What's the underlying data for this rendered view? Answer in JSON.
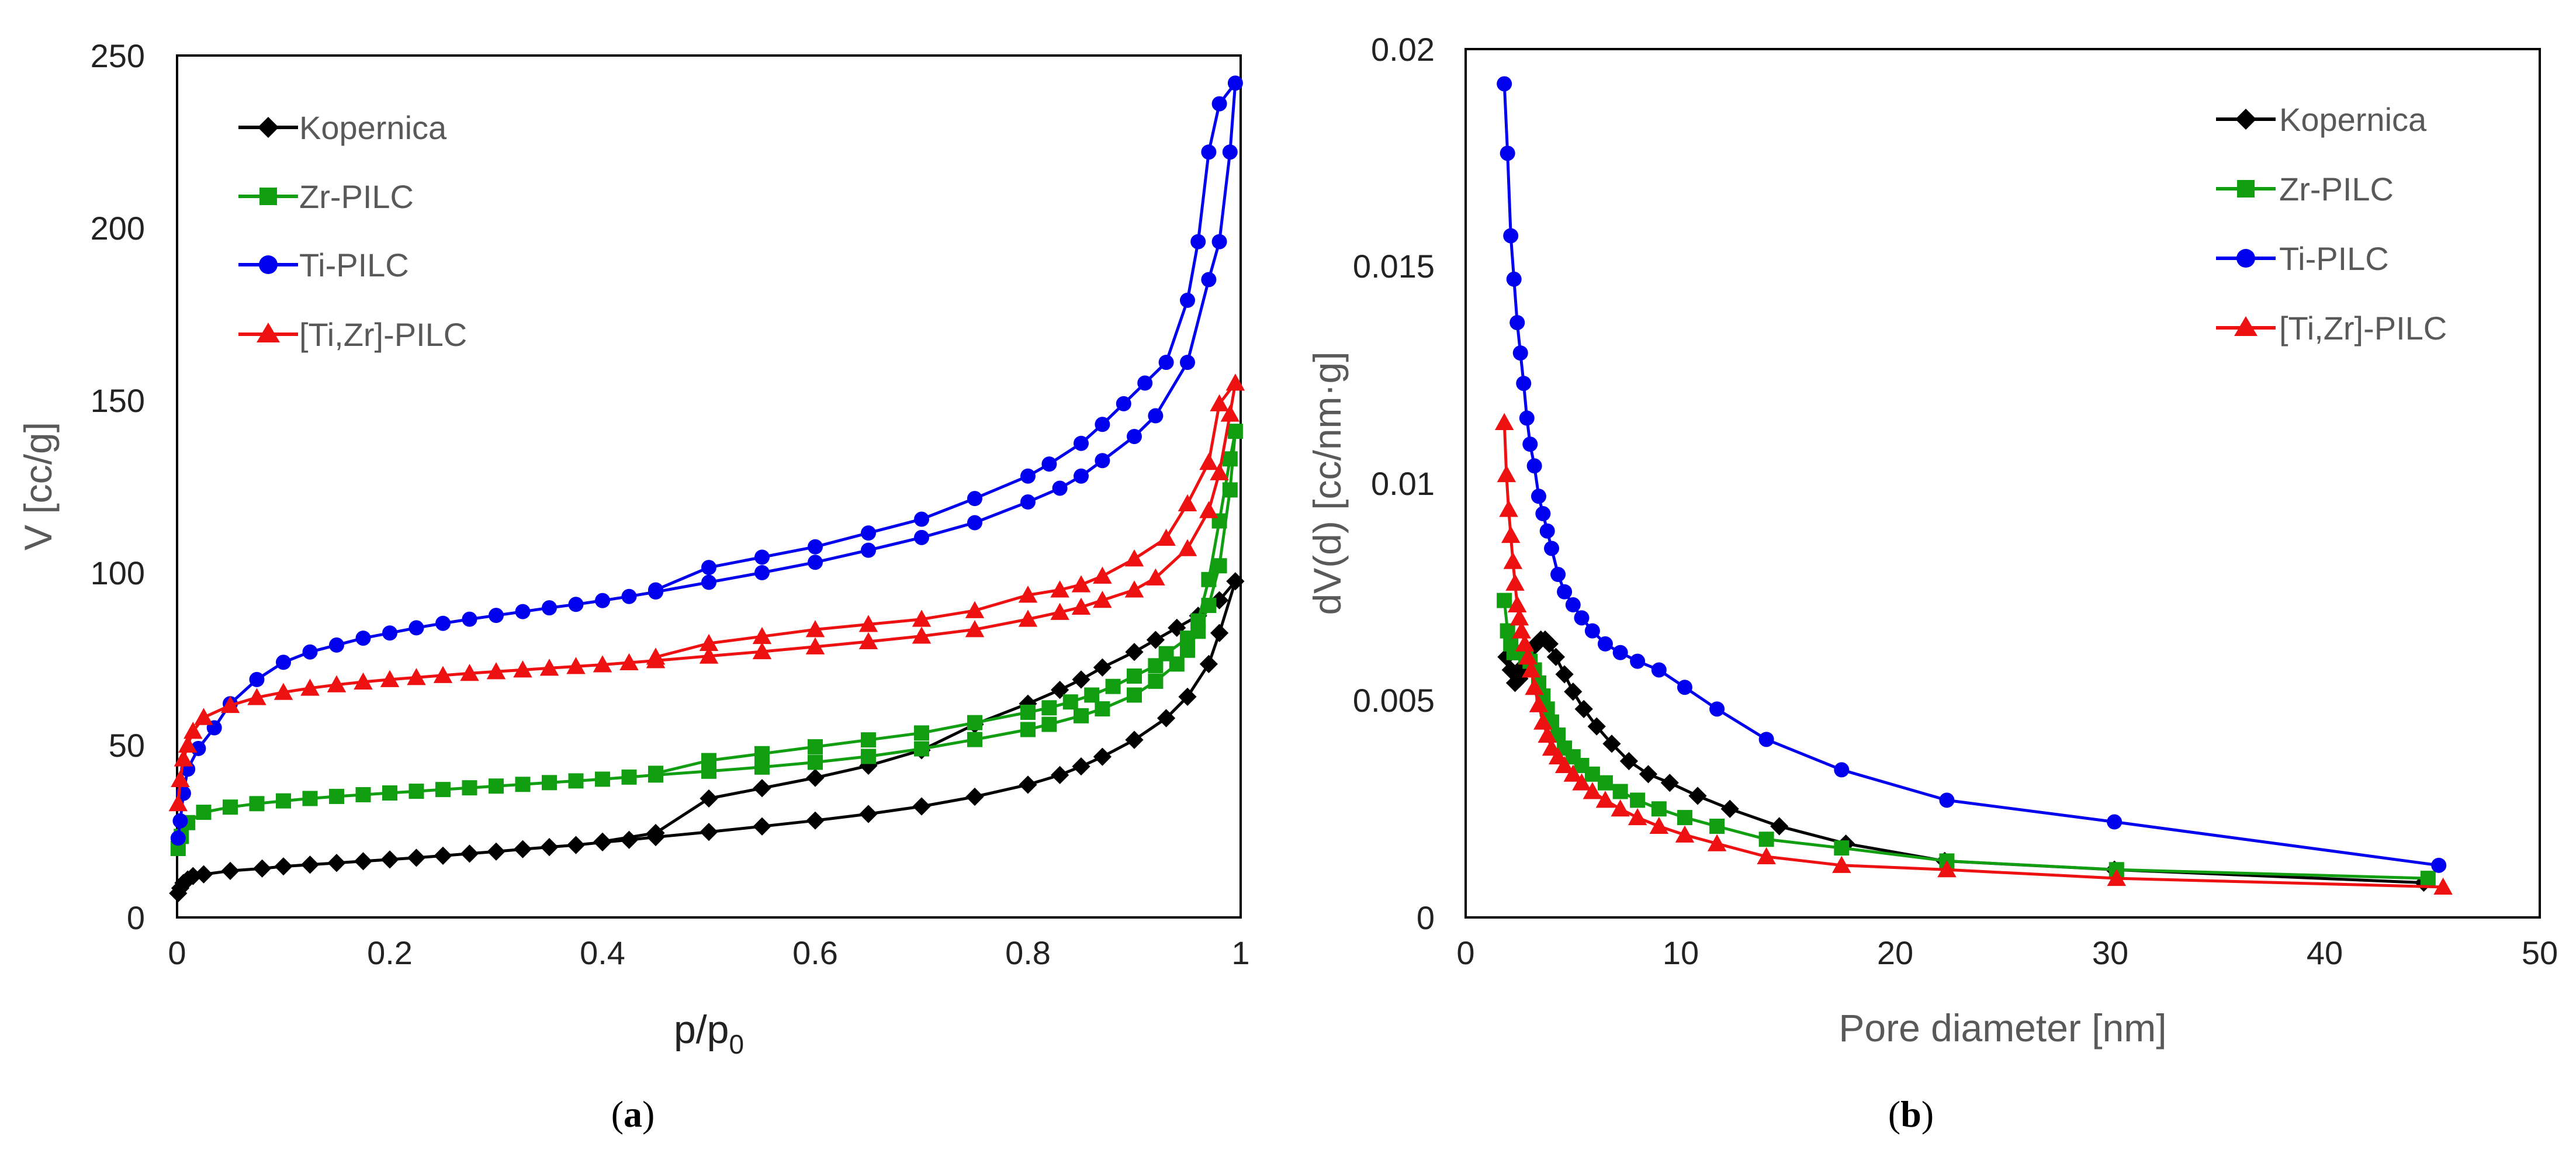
{
  "chart_data": [
    {
      "type": "line",
      "panel": "(a)",
      "panel_prefix": "(",
      "panel_letter": "a",
      "panel_suffix": ")",
      "xlabel": "p/p0",
      "xlabel_main": "p/p",
      "xlabel_sub": "0",
      "ylabel": "V [cc/g]",
      "xlim": [
        0,
        1
      ],
      "ylim": [
        0,
        250
      ],
      "xticks": [
        0,
        0.2,
        0.4,
        0.6,
        0.8,
        1
      ],
      "xtick_labels": [
        "0",
        "0.2",
        "0.4",
        "0.6",
        "0.8",
        "1"
      ],
      "yticks": [
        0,
        50,
        100,
        150,
        200,
        250
      ],
      "ytick_labels": [
        "0",
        "50",
        "100",
        "150",
        "200",
        "250"
      ],
      "grid": false,
      "legend_position": "top-left",
      "series": [
        {
          "name": "Kopernica",
          "color": "#000000",
          "marker": "diamond",
          "x": [
            0.001,
            0.003,
            0.006,
            0.01,
            0.015,
            0.025,
            0.05,
            0.08,
            0.1,
            0.125,
            0.15,
            0.175,
            0.2,
            0.225,
            0.25,
            0.275,
            0.3,
            0.325,
            0.35,
            0.375,
            0.4,
            0.425,
            0.45,
            0.5,
            0.55,
            0.6,
            0.65,
            0.7,
            0.75,
            0.8,
            0.83,
            0.85,
            0.87,
            0.9,
            0.93,
            0.95,
            0.97,
            0.98,
            0.995,
            0.98,
            0.96,
            0.94,
            0.92,
            0.9,
            0.87,
            0.85,
            0.83,
            0.8,
            0.75,
            0.7,
            0.65,
            0.6,
            0.55,
            0.5,
            0.45,
            0.4
          ],
          "y": [
            7,
            8.5,
            10,
            11,
            12,
            12.5,
            13.5,
            14.2,
            14.8,
            15.3,
            15.8,
            16.3,
            16.8,
            17.3,
            17.9,
            18.5,
            19.1,
            19.8,
            20.4,
            21,
            21.8,
            22.5,
            23.3,
            24.8,
            26.4,
            28.1,
            30,
            32.2,
            35,
            38.5,
            41.3,
            43.8,
            46.6,
            51.5,
            57.8,
            64,
            73.5,
            82.5,
            97.5,
            92,
            87.5,
            84,
            80.5,
            77,
            72.5,
            69,
            66,
            62,
            56,
            48.5,
            44,
            40.5,
            37.5,
            34.5,
            24.5,
            22
          ]
        },
        {
          "name": "Zr-PILC",
          "color": "#119e11",
          "marker": "square",
          "x": [
            0.001,
            0.004,
            0.01,
            0.025,
            0.05,
            0.075,
            0.1,
            0.125,
            0.15,
            0.175,
            0.2,
            0.225,
            0.25,
            0.275,
            0.3,
            0.325,
            0.35,
            0.375,
            0.4,
            0.425,
            0.45,
            0.5,
            0.55,
            0.6,
            0.65,
            0.7,
            0.75,
            0.8,
            0.82,
            0.85,
            0.87,
            0.9,
            0.92,
            0.94,
            0.95,
            0.96,
            0.97,
            0.98,
            0.99,
            0.995,
            0.99,
            0.98,
            0.97,
            0.96,
            0.95,
            0.93,
            0.92,
            0.9,
            0.88,
            0.86,
            0.84,
            0.82,
            0.8,
            0.75,
            0.7,
            0.65,
            0.6,
            0.55,
            0.5,
            0.45
          ],
          "y": [
            20,
            23.5,
            27.5,
            30.5,
            32,
            33,
            33.8,
            34.5,
            35.1,
            35.6,
            36.1,
            36.6,
            37.1,
            37.6,
            38.1,
            38.6,
            39.1,
            39.6,
            40.1,
            40.7,
            41.3,
            42.4,
            43.6,
            45,
            46.7,
            48.9,
            51.6,
            54.5,
            56,
            58.5,
            60.5,
            64.5,
            68.5,
            73.5,
            77.5,
            83,
            90.5,
            102,
            124,
            141,
            133,
            115,
            98,
            86,
            81,
            76.5,
            73,
            70,
            67,
            64.5,
            62.5,
            60.8,
            59.5,
            56.5,
            53.5,
            51.5,
            49.5,
            47.5,
            45.5,
            41.8
          ]
        },
        {
          "name": "Ti-PILC",
          "color": "#0000ee",
          "marker": "circle",
          "x": [
            0.001,
            0.003,
            0.006,
            0.01,
            0.02,
            0.035,
            0.05,
            0.075,
            0.1,
            0.125,
            0.15,
            0.175,
            0.2,
            0.225,
            0.25,
            0.275,
            0.3,
            0.325,
            0.35,
            0.375,
            0.4,
            0.425,
            0.45,
            0.5,
            0.55,
            0.6,
            0.65,
            0.7,
            0.75,
            0.8,
            0.83,
            0.85,
            0.87,
            0.9,
            0.92,
            0.95,
            0.97,
            0.98,
            0.99,
            0.995,
            0.98,
            0.97,
            0.96,
            0.95,
            0.93,
            0.91,
            0.89,
            0.87,
            0.85,
            0.82,
            0.8,
            0.75,
            0.7,
            0.65,
            0.6,
            0.55,
            0.5,
            0.45
          ],
          "y": [
            23,
            28,
            36,
            43,
            49,
            55,
            62,
            69,
            74,
            77,
            79,
            81,
            82.5,
            84,
            85.3,
            86.5,
            87.6,
            88.7,
            89.8,
            90.8,
            91.9,
            93.1,
            94.4,
            97.2,
            100,
            103,
            106.5,
            110.2,
            114.5,
            120.5,
            124.5,
            128,
            132.5,
            139.5,
            145.5,
            161,
            185,
            196,
            222,
            242,
            236,
            222,
            196,
            179,
            161,
            155,
            149,
            143,
            137.5,
            131.5,
            128,
            121.5,
            115.5,
            111.5,
            107.5,
            104.5,
            101.5,
            95
          ]
        },
        {
          "name": "[Ti,Zr]-PILC",
          "color": "#ee1111",
          "marker": "triangle",
          "x": [
            0.001,
            0.003,
            0.006,
            0.01,
            0.015,
            0.025,
            0.05,
            0.075,
            0.1,
            0.125,
            0.15,
            0.175,
            0.2,
            0.225,
            0.25,
            0.275,
            0.3,
            0.325,
            0.35,
            0.375,
            0.4,
            0.425,
            0.45,
            0.5,
            0.55,
            0.6,
            0.65,
            0.7,
            0.75,
            0.8,
            0.83,
            0.85,
            0.87,
            0.9,
            0.92,
            0.95,
            0.97,
            0.98,
            0.99,
            0.995,
            0.98,
            0.97,
            0.95,
            0.93,
            0.9,
            0.87,
            0.85,
            0.83,
            0.8,
            0.75,
            0.7,
            0.65,
            0.6,
            0.55,
            0.5,
            0.45
          ],
          "y": [
            33,
            40,
            46,
            50,
            54,
            58,
            61.5,
            63.8,
            65.3,
            66.5,
            67.5,
            68.3,
            69,
            69.6,
            70.2,
            70.8,
            71.3,
            71.8,
            72.3,
            72.8,
            73.3,
            73.9,
            74.5,
            75.8,
            77.1,
            78.5,
            80,
            81.6,
            83.5,
            86.5,
            88.5,
            90,
            92,
            95,
            98.5,
            107,
            118,
            129,
            146,
            155,
            149,
            132,
            120,
            110,
            104,
            99,
            96.5,
            95,
            93.5,
            89,
            86.5,
            85,
            83.5,
            81.5,
            79.5,
            75.5
          ]
        }
      ]
    },
    {
      "type": "line",
      "panel": "(b)",
      "panel_prefix": "(",
      "panel_letter": "b",
      "panel_suffix": ")",
      "xlabel": "Pore diameter [nm]",
      "ylabel": "dV(d) [cc/nm·g]",
      "xlim": [
        0,
        50
      ],
      "ylim": [
        0,
        0.02
      ],
      "xticks": [
        0,
        10,
        20,
        30,
        40,
        50
      ],
      "xtick_labels": [
        "0",
        "10",
        "20",
        "30",
        "40",
        "50"
      ],
      "yticks": [
        0,
        0.005,
        0.01,
        0.015,
        0.02
      ],
      "ytick_labels": [
        "0",
        "0.005",
        "0.01",
        "0.015",
        "0.02"
      ],
      "grid": false,
      "legend_position": "top-right",
      "series": [
        {
          "name": "Kopernica",
          "color": "#000000",
          "marker": "diamond",
          "x": [
            1.9,
            2.1,
            2.3,
            2.5,
            2.7,
            2.9,
            3.1,
            3.3,
            3.5,
            3.7,
            3.9,
            4.2,
            4.6,
            5.0,
            5.5,
            6.1,
            6.8,
            7.6,
            8.5,
            9.5,
            10.8,
            12.3,
            14.6,
            17.7,
            22.3,
            30.2,
            44.6
          ],
          "y": [
            0.006,
            0.0057,
            0.0054,
            0.0055,
            0.0058,
            0.006,
            0.0062,
            0.0063,
            0.0064,
            0.0064,
            0.0063,
            0.006,
            0.0056,
            0.0052,
            0.0048,
            0.0044,
            0.004,
            0.0036,
            0.0033,
            0.0031,
            0.0028,
            0.0025,
            0.0021,
            0.0017,
            0.0013,
            0.0011,
            0.0008
          ]
        },
        {
          "name": "Zr-PILC",
          "color": "#119e11",
          "marker": "square",
          "x": [
            1.8,
            1.95,
            2.1,
            2.25,
            2.4,
            2.6,
            2.8,
            3.0,
            3.2,
            3.4,
            3.6,
            3.8,
            4.0,
            4.3,
            4.6,
            5.0,
            5.4,
            5.9,
            6.5,
            7.2,
            8.0,
            9.0,
            10.2,
            11.7,
            14.0,
            17.5,
            22.4,
            30.3,
            44.8
          ],
          "y": [
            0.0073,
            0.0066,
            0.0063,
            0.0061,
            0.0061,
            0.0061,
            0.006,
            0.0059,
            0.0057,
            0.0054,
            0.0051,
            0.0048,
            0.0045,
            0.0042,
            0.0039,
            0.0037,
            0.0035,
            0.0033,
            0.0031,
            0.0029,
            0.0027,
            0.0025,
            0.0023,
            0.0021,
            0.0018,
            0.0016,
            0.0013,
            0.0011,
            0.0009
          ]
        },
        {
          "name": "Ti-PILC",
          "color": "#0000ee",
          "marker": "circle",
          "x": [
            1.8,
            1.95,
            2.1,
            2.25,
            2.4,
            2.55,
            2.7,
            2.85,
            3.0,
            3.2,
            3.4,
            3.6,
            3.8,
            4.0,
            4.3,
            4.6,
            5.0,
            5.4,
            5.9,
            6.5,
            7.2,
            8.0,
            9.0,
            10.2,
            11.7,
            14.0,
            17.5,
            22.4,
            30.2,
            45.3
          ],
          "y": [
            0.0192,
            0.0176,
            0.0157,
            0.0147,
            0.0137,
            0.013,
            0.0123,
            0.0115,
            0.0109,
            0.0104,
            0.0097,
            0.0093,
            0.0089,
            0.0085,
            0.0079,
            0.0075,
            0.0072,
            0.0069,
            0.0066,
            0.0063,
            0.0061,
            0.0059,
            0.0057,
            0.0053,
            0.0048,
            0.0041,
            0.0034,
            0.0027,
            0.0022,
            0.0012
          ]
        },
        {
          "name": "[Ti,Zr]-PILC",
          "color": "#ee1111",
          "marker": "triangle",
          "x": [
            1.8,
            1.9,
            2.0,
            2.1,
            2.2,
            2.3,
            2.4,
            2.5,
            2.6,
            2.75,
            2.9,
            3.05,
            3.2,
            3.4,
            3.6,
            3.8,
            4.0,
            4.3,
            4.6,
            5.0,
            5.4,
            5.9,
            6.5,
            7.2,
            8.0,
            9.0,
            10.2,
            11.7,
            14.0,
            17.5,
            22.4,
            30.3,
            45.5
          ],
          "y": [
            0.0114,
            0.0102,
            0.0094,
            0.0088,
            0.0082,
            0.0077,
            0.0072,
            0.0069,
            0.0066,
            0.0063,
            0.006,
            0.0057,
            0.0053,
            0.0049,
            0.0045,
            0.0042,
            0.0039,
            0.0037,
            0.0035,
            0.0033,
            0.0031,
            0.0029,
            0.0027,
            0.0025,
            0.0023,
            0.0021,
            0.0019,
            0.0017,
            0.0014,
            0.0012,
            0.0011,
            0.0009,
            0.0007
          ]
        }
      ]
    }
  ]
}
